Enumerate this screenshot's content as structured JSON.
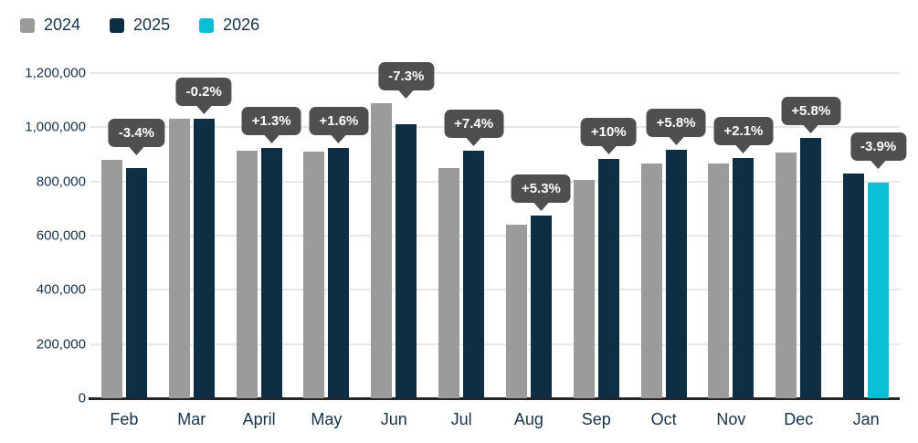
{
  "colors": {
    "background": "#ffffff",
    "tooltip_bg": "#4f4f4f",
    "tooltip_text": "#ffffff",
    "axis_text": "#16314a",
    "gridline": "#e7e7e7",
    "axis_line": "#262626",
    "series_2024": "#9b9b9b",
    "series_2025": "#0e2e44",
    "series_2026": "#0cbdd6"
  },
  "chart_data": {
    "type": "bar",
    "title": "",
    "xlabel": "",
    "ylabel": "",
    "grid": "horizontal",
    "legend_position": "top-left",
    "ylim": [
      0,
      1200000
    ],
    "ytick_step": 200000,
    "ytick_labels": [
      "0",
      "200,000",
      "400,000",
      "600,000",
      "800,000",
      "1,000,000",
      "1,200,000"
    ],
    "categories": [
      "Feb",
      "Mar",
      "April",
      "May",
      "Jun",
      "Jul",
      "Aug",
      "Sep",
      "Oct",
      "Nov",
      "Dec",
      "Jan"
    ],
    "series": [
      {
        "name": "2024",
        "color": "#9b9b9b",
        "values": [
          880000,
          1032000,
          913000,
          910000,
          1090000,
          851000,
          640000,
          804000,
          866000,
          867000,
          908000,
          null
        ]
      },
      {
        "name": "2025",
        "color": "#0e2e44",
        "values": [
          850000,
          1030000,
          925000,
          925000,
          1010000,
          914000,
          674000,
          884000,
          916000,
          885000,
          961000,
          829000
        ]
      },
      {
        "name": "2026",
        "color": "#0cbdd6",
        "values": [
          null,
          null,
          null,
          null,
          null,
          null,
          null,
          null,
          null,
          null,
          null,
          797000
        ]
      }
    ],
    "annotations": [
      "-3.4%",
      "-0.2%",
      "+1.3%",
      "+1.6%",
      "-7.3%",
      "+7.4%",
      "+5.3%",
      "+10%",
      "+5.8%",
      "+2.1%",
      "+5.8%",
      "-3.9%"
    ]
  }
}
